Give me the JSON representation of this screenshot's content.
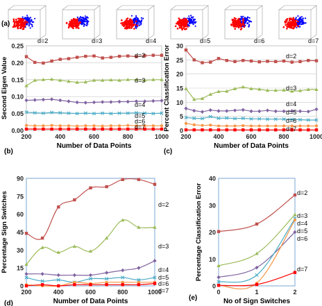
{
  "colors": {
    "d2": "#c0504d",
    "d3": "#9bbb59",
    "d4": "#8064a2",
    "d5": "#4bacc6",
    "d6": "#f79646",
    "d7": "#ff0000",
    "cube_red": "#ff0000",
    "cube_blue": "#0000ff"
  },
  "panel_labels": [
    "(a)",
    "(b)",
    "(c)",
    "(d)",
    "(e)"
  ],
  "cubes": {
    "labels": [
      "d=2",
      "d=3",
      "d=4",
      "d=5",
      "d=6",
      "d=7"
    ]
  },
  "chart_data": [
    {
      "id": "b",
      "type": "line",
      "xlabel": "Number of Data Points",
      "ylabel": "Second Eigen Value",
      "xlim": [
        200,
        1000
      ],
      "ylim": [
        0,
        0.25
      ],
      "xticks": [
        200,
        400,
        600,
        800,
        1000
      ],
      "yticks": [
        0.0,
        0.05,
        0.1,
        0.15,
        0.2,
        0.25
      ],
      "ytick_labels": [
        "0.00",
        "0.05",
        "0.10",
        "0.15",
        "0.20",
        "0.25"
      ],
      "x": [
        200,
        250,
        300,
        350,
        400,
        450,
        500,
        550,
        600,
        650,
        700,
        750,
        800,
        850,
        900,
        950,
        1000
      ],
      "series": [
        {
          "name": "d=2",
          "color_key": "d2",
          "marker": "square",
          "values": [
            0.218,
            0.201,
            0.199,
            0.205,
            0.21,
            0.212,
            0.216,
            0.219,
            0.22,
            0.214,
            0.216,
            0.219,
            0.22,
            0.218,
            0.221,
            0.222,
            0.222
          ]
        },
        {
          "name": "d=3",
          "color_key": "d3",
          "marker": "triangle",
          "values": [
            0.132,
            0.148,
            0.15,
            0.151,
            0.148,
            0.145,
            0.142,
            0.143,
            0.148,
            0.148,
            0.149,
            0.148,
            0.15,
            0.15,
            0.148,
            0.15,
            0.15
          ]
        },
        {
          "name": "d=4",
          "color_key": "d4",
          "marker": "diamond",
          "values": [
            0.089,
            0.09,
            0.091,
            0.092,
            0.089,
            0.086,
            0.083,
            0.082,
            0.083,
            0.084,
            0.084,
            0.085,
            0.085,
            0.086,
            0.086,
            0.087,
            0.088
          ]
        },
        {
          "name": "d=5",
          "color_key": "d5",
          "marker": "x",
          "values": [
            0.054,
            0.052,
            0.051,
            0.053,
            0.052,
            0.051,
            0.05,
            0.051,
            0.05,
            0.051,
            0.05,
            0.051,
            0.051,
            0.052,
            0.051,
            0.05,
            0.051
          ]
        },
        {
          "name": "d=6",
          "color_key": "d6",
          "marker": "circle",
          "values": [
            0.015,
            0.014,
            0.014,
            0.015,
            0.014,
            0.014,
            0.013,
            0.014,
            0.014,
            0.013,
            0.014,
            0.014,
            0.015,
            0.014,
            0.014,
            0.014,
            0.014
          ]
        },
        {
          "name": "d=7",
          "color_key": "d7",
          "marker": "square",
          "values": [
            0.004,
            0.004,
            0.004,
            0.004,
            0.004,
            0.004,
            0.004,
            0.004,
            0.004,
            0.004,
            0.004,
            0.004,
            0.004,
            0.004,
            0.004,
            0.004,
            0.004
          ]
        }
      ]
    },
    {
      "id": "c",
      "type": "line",
      "xlabel": "Number of Data Points",
      "ylabel": "Percent Classification Error",
      "xlim": [
        200,
        1000
      ],
      "ylim": [
        0,
        30
      ],
      "xticks": [
        200,
        400,
        600,
        800,
        1000
      ],
      "yticks": [
        0,
        5,
        10,
        15,
        20,
        25,
        30
      ],
      "ytick_labels": [
        "0",
        "5",
        "10",
        "15",
        "20",
        "25",
        "30"
      ],
      "x": [
        200,
        250,
        300,
        350,
        400,
        450,
        500,
        550,
        600,
        650,
        700,
        750,
        800,
        850,
        900,
        950,
        1000
      ],
      "series": [
        {
          "name": "d=2",
          "color_key": "d2",
          "marker": "square",
          "values": [
            28.5,
            25.0,
            24.0,
            24.2,
            25.5,
            24.8,
            24.4,
            24.8,
            24.6,
            24.3,
            24.5,
            24.4,
            24.6,
            24.2,
            24.4,
            24.8,
            24.7
          ]
        },
        {
          "name": "d=3",
          "color_key": "d3",
          "marker": "triangle",
          "values": [
            14.8,
            11.0,
            11.3,
            12.8,
            13.8,
            13.9,
            14.8,
            15.4,
            14.8,
            14.6,
            14.2,
            14.2,
            14.3,
            13.9,
            14.1,
            14.5,
            14.5
          ]
        },
        {
          "name": "d=4",
          "color_key": "d4",
          "marker": "diamond",
          "values": [
            7.8,
            7.0,
            6.6,
            7.2,
            6.9,
            6.9,
            7.1,
            7.3,
            6.8,
            6.8,
            7.1,
            6.8,
            6.8,
            6.9,
            6.8,
            6.7,
            7.5
          ]
        },
        {
          "name": "d=5",
          "color_key": "d5",
          "marker": "x",
          "values": [
            4.6,
            4.3,
            4.2,
            4.9,
            4.3,
            4.4,
            4.2,
            4.3,
            4.1,
            4.1,
            4.0,
            4.0,
            4.0,
            3.9,
            3.8,
            3.7,
            3.7
          ]
        },
        {
          "name": "d=6",
          "color_key": "d6",
          "marker": "circle",
          "values": [
            2.5,
            2.0,
            1.8,
            1.9,
            1.6,
            1.6,
            1.6,
            1.7,
            1.6,
            1.6,
            1.6,
            1.6,
            1.6,
            1.6,
            1.6,
            1.6,
            1.6
          ]
        },
        {
          "name": "d=7",
          "color_key": "d7",
          "marker": "square",
          "values": [
            0.2,
            0.2,
            0.2,
            0.2,
            0.2,
            0.2,
            0.2,
            0.2,
            0.2,
            0.2,
            0.2,
            0.2,
            0.2,
            0.2,
            0.2,
            0.2,
            0.2
          ]
        }
      ]
    },
    {
      "id": "d",
      "type": "line",
      "xlabel": "Number of Data Points",
      "ylabel": "Percentage Sign Switches",
      "xlim": [
        200,
        1000
      ],
      "ylim": [
        0,
        90
      ],
      "xticks": [
        200,
        400,
        600,
        800,
        1000
      ],
      "yticks": [
        0,
        15,
        30,
        45,
        60,
        75,
        90
      ],
      "ytick_labels": [
        "0",
        "15",
        "30",
        "45",
        "60",
        "75",
        "90"
      ],
      "x": [
        200,
        300,
        400,
        500,
        600,
        700,
        800,
        900,
        1000
      ],
      "series": [
        {
          "name": "d=2",
          "color_key": "d2",
          "marker": "square",
          "values": [
            44,
            40,
            66,
            72,
            82,
            83,
            89,
            89,
            85
          ]
        },
        {
          "name": "d=3",
          "color_key": "d3",
          "marker": "triangle",
          "values": [
            18,
            32,
            28,
            33,
            29,
            40,
            55,
            49,
            49
          ]
        },
        {
          "name": "d=4",
          "color_key": "d4",
          "marker": "diamond",
          "values": [
            10,
            10,
            9,
            9,
            9,
            11,
            13,
            15,
            21
          ]
        },
        {
          "name": "d=5",
          "color_key": "d5",
          "marker": "x",
          "values": [
            7,
            4,
            5,
            3,
            6,
            6,
            7,
            5,
            7
          ]
        },
        {
          "name": "d=6",
          "color_key": "d6",
          "marker": "circle",
          "values": [
            1,
            0,
            0,
            3,
            2,
            3,
            3,
            3,
            3
          ]
        },
        {
          "name": "d=7",
          "color_key": "d7",
          "marker": "square",
          "values": [
            0,
            1,
            0,
            1,
            1,
            1,
            1,
            1,
            2
          ]
        }
      ]
    },
    {
      "id": "e",
      "type": "line",
      "xlabel": "No of Sign Switches",
      "ylabel": "Percentage Classification Error",
      "xlim": [
        0,
        2
      ],
      "ylim": [
        0,
        40
      ],
      "xticks": [
        0,
        1,
        2
      ],
      "yticks": [
        0,
        10,
        20,
        30,
        40
      ],
      "ytick_labels": [
        "0",
        "10",
        "20",
        "30",
        "40"
      ],
      "x": [
        0,
        1,
        2
      ],
      "series": [
        {
          "name": "d=2",
          "color_key": "d2",
          "marker": "square",
          "values": [
            20.2,
            23.0,
            33.8
          ]
        },
        {
          "name": "d=3",
          "color_key": "d3",
          "marker": "triangle",
          "values": [
            7.5,
            12.0,
            26.5
          ]
        },
        {
          "name": "d=4",
          "color_key": "d4",
          "marker": "diamond",
          "values": [
            3.2,
            6.8,
            20.0
          ]
        },
        {
          "name": "d=5",
          "color_key": "d5",
          "marker": "x",
          "values": [
            1.5,
            4.0,
            25.0
          ]
        },
        {
          "name": "d=6",
          "color_key": "d6",
          "marker": "circle",
          "values": [
            0.2,
            1.0,
            24.5
          ]
        },
        {
          "name": "d=7",
          "color_key": "d7",
          "marker": "square",
          "values": [
            0.2,
            0.5,
            5.0
          ]
        }
      ]
    }
  ]
}
